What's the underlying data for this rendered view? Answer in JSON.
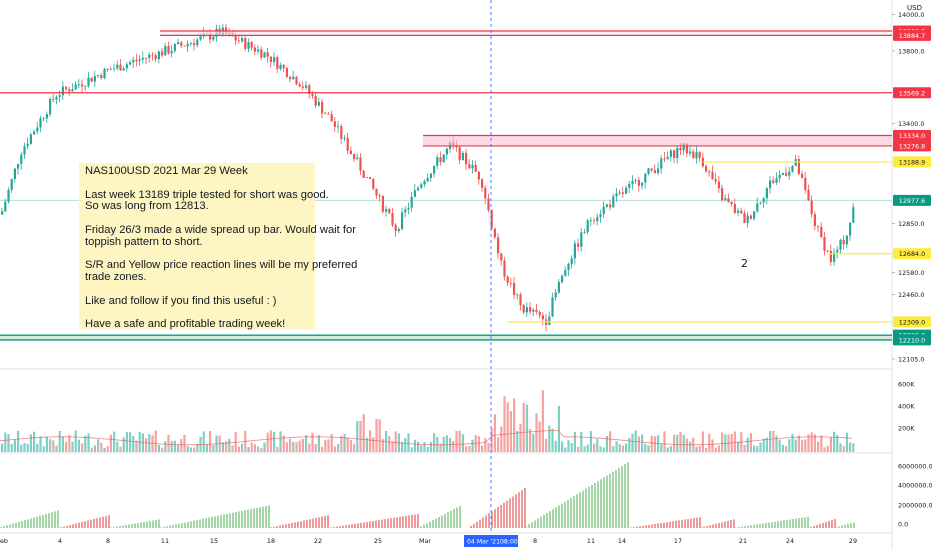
{
  "chart_data": {
    "type": "candlestick",
    "symbol": "NAS100USD",
    "currency_label": "USD",
    "ylim": [
      12060,
      14080
    ],
    "price_axis_ticks": [
      "14000.0",
      "13800.0",
      "13400.0",
      "12850.0",
      "12580.0",
      "12460.0",
      "12105.0"
    ],
    "volume_axis_ticks": [
      "600K",
      "400K",
      "200K"
    ],
    "indicator_axis_ticks": [
      "6000000.0",
      "4000000.0",
      "2000000.0",
      "0.0"
    ],
    "volume_max": 700000,
    "indicator_max": 7000000,
    "x_tick_labels": [
      "eb",
      "4",
      "8",
      "11",
      "15",
      "18",
      "22",
      "25",
      "Mar",
      "8",
      "11",
      "14",
      "17",
      "21",
      "24",
      "29"
    ],
    "crosshair_date_label": "04 Mar '21",
    "crosshair_time_label": "08:00",
    "resistance_lines": [
      {
        "price": 13908.9,
        "label": "13908.9"
      },
      {
        "price": 13884.7,
        "label": "13884.7"
      },
      {
        "price": 13569.2,
        "label": "13569.2"
      },
      {
        "price": 13334.0,
        "label": "13334.0"
      },
      {
        "price": 13276.8,
        "label": "13276.8"
      }
    ],
    "reaction_lines": [
      {
        "price": 13188.9,
        "label": "13188.9"
      },
      {
        "price": 12684.0,
        "label": "12684.0"
      },
      {
        "price": 12309.0,
        "label": "12309.0"
      }
    ],
    "support_lines": [
      {
        "price": 12236.0,
        "label": "12236.0"
      },
      {
        "price": 12210.0,
        "label": "12210.0"
      }
    ],
    "last_price": {
      "price": 12977.6,
      "label": "12977.6"
    },
    "annotation_number": "2",
    "colors": {
      "up": "#26a69a",
      "down": "#ef5350",
      "up_volume": "#7fcfc4",
      "down_volume": "#f4a3a1",
      "resistance": "#f23645",
      "reaction": "#ffeb3b",
      "support": "#089981",
      "crosshair": "#2962ff",
      "last_price": "#089981"
    }
  },
  "note": {
    "lines": [
      "NAS100USD 2021 Mar 29 Week",
      "",
      "Last week 13189 triple tested for short was good.",
      "So was long from 12813.",
      "",
      "Friday 26/3 made a wide spread up bar. Would wait for",
      "toppish pattern to short.",
      "",
      "S/R and Yellow price reaction lines will be my preferred",
      "trade zones.",
      "",
      "Like and follow if you find this useful : )",
      "",
      "Have a safe and profitable trading week!"
    ]
  }
}
